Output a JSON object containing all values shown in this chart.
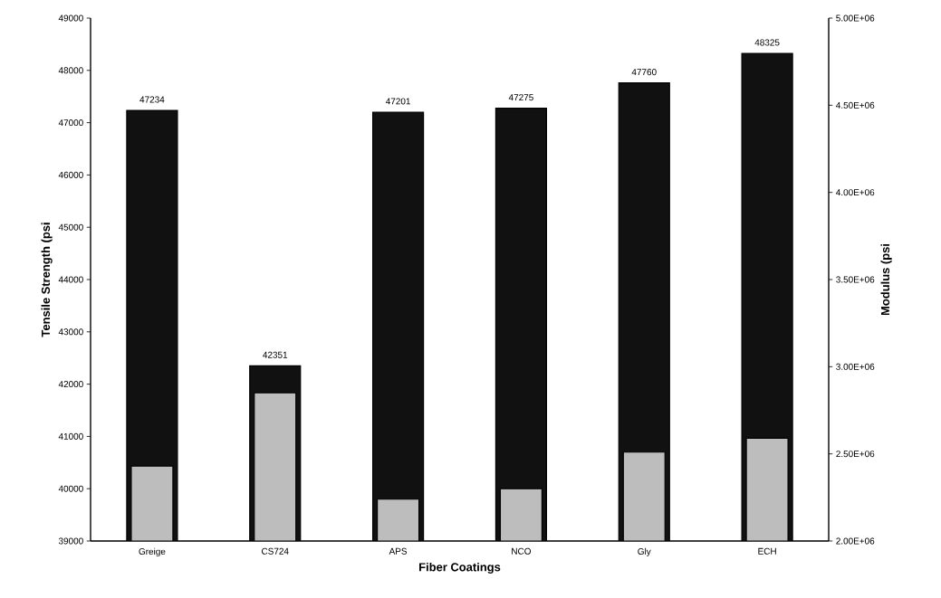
{
  "chart_data": {
    "type": "bar",
    "xlabel": "Fiber Coatings",
    "ylabel": "Tensile Strength (psi",
    "y2label": "Modulus (psi",
    "categories": [
      "Greige",
      "CS724",
      "APS",
      "NCO",
      "Gly",
      "ECH"
    ],
    "series": [
      {
        "color": "#111111",
        "values": [
          47234,
          42351,
          47201,
          47275,
          47760,
          48325
        ],
        "value_labels": [
          "47234",
          "42351",
          "47201",
          "47275",
          "47760",
          "48325"
        ]
      },
      {
        "color": "#bdbdbd",
        "axis": "y2",
        "values": [
          2430000,
          2850000,
          2240000,
          2300000,
          2510000,
          2590000
        ]
      }
    ],
    "ylim": [
      39000,
      49000
    ],
    "yticks": [
      39000,
      40000,
      41000,
      42000,
      43000,
      44000,
      45000,
      46000,
      47000,
      48000,
      49000
    ],
    "y2lim": [
      2000000,
      5000000
    ],
    "y2ticks": [
      {
        "value": 2000000,
        "label": "2.00E+06"
      },
      {
        "value": 2500000,
        "label": "2.50E+06"
      },
      {
        "value": 3000000,
        "label": "3.00E+06"
      },
      {
        "value": 3500000,
        "label": "3.50E+06"
      },
      {
        "value": 4000000,
        "label": "4.00E+06"
      },
      {
        "value": 4500000,
        "label": "4.50E+06"
      },
      {
        "value": 5000000,
        "label": "5.00E+06"
      }
    ],
    "grid": false
  }
}
